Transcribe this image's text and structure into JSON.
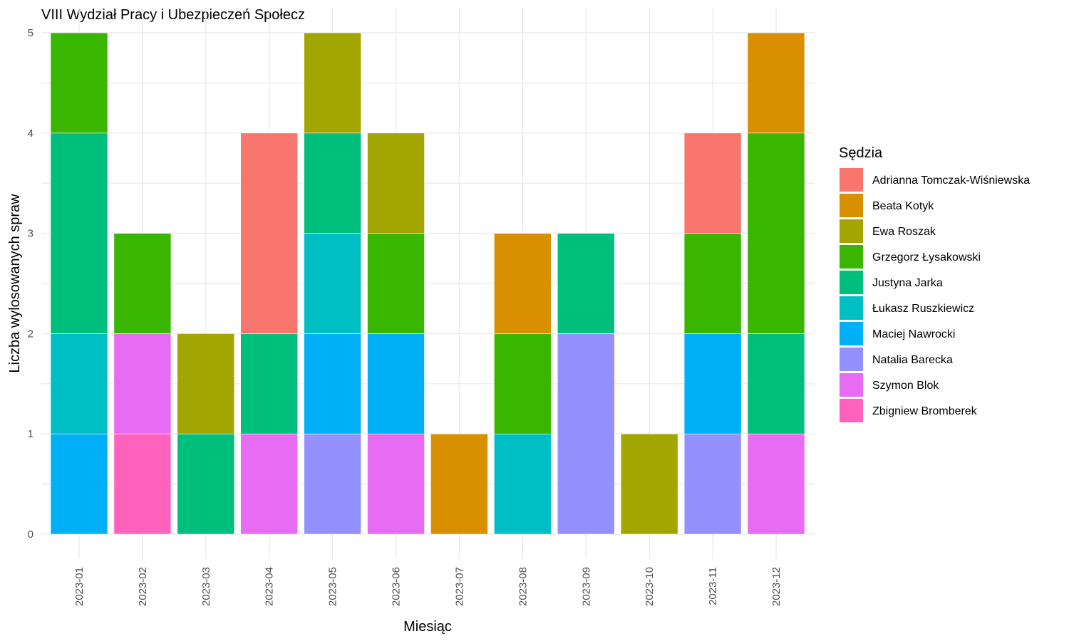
{
  "chart_data": {
    "type": "bar",
    "stacked": true,
    "title": "VIII Wydział Pracy i Ubezpieczeń Społecz",
    "xlabel": "Miesiąc",
    "ylabel": "Liczba wylosowanych spraw",
    "ylim": [
      0,
      5
    ],
    "yticks": [
      "0",
      "1",
      "2",
      "3",
      "4",
      "5"
    ],
    "grid": true,
    "legend_title": "Sędzia",
    "legend_position": "right",
    "categories": [
      "2023-01",
      "2023-02",
      "2023-03",
      "2023-04",
      "2023-05",
      "2023-06",
      "2023-07",
      "2023-08",
      "2023-09",
      "2023-10",
      "2023-11",
      "2023-12"
    ],
    "series": [
      {
        "name": "Adrianna Tomczak-Wiśniewska",
        "color": "#F8766D",
        "values": [
          0,
          0,
          0,
          2,
          0,
          0,
          0,
          0,
          0,
          0,
          1,
          0
        ]
      },
      {
        "name": "Beata Kotyk",
        "color": "#D89000",
        "values": [
          0,
          0,
          0,
          0,
          0,
          0,
          1,
          1,
          0,
          0,
          0,
          1
        ]
      },
      {
        "name": "Ewa Roszak",
        "color": "#A3A500",
        "values": [
          0,
          0,
          1,
          0,
          1,
          1,
          0,
          0,
          0,
          1,
          0,
          0
        ]
      },
      {
        "name": "Grzegorz Łysakowski",
        "color": "#39B600",
        "values": [
          1,
          1,
          0,
          0,
          0,
          1,
          0,
          1,
          0,
          0,
          1,
          2
        ]
      },
      {
        "name": "Justyna Jarka",
        "color": "#00BF7D",
        "values": [
          2,
          0,
          1,
          1,
          1,
          0,
          0,
          0,
          1,
          0,
          0,
          1
        ]
      },
      {
        "name": "Łukasz Ruszkiewicz",
        "color": "#00BFC4",
        "values": [
          1,
          0,
          0,
          0,
          1,
          0,
          0,
          1,
          0,
          0,
          0,
          0
        ]
      },
      {
        "name": "Maciej Nawrocki",
        "color": "#00B0F6",
        "values": [
          1,
          0,
          0,
          0,
          1,
          1,
          0,
          0,
          0,
          0,
          1,
          0
        ]
      },
      {
        "name": "Natalia Barecka",
        "color": "#9590FF",
        "values": [
          0,
          0,
          0,
          0,
          1,
          0,
          0,
          0,
          2,
          0,
          1,
          0
        ]
      },
      {
        "name": "Szymon Blok",
        "color": "#E76BF3",
        "values": [
          0,
          1,
          0,
          1,
          0,
          1,
          0,
          0,
          0,
          0,
          0,
          1
        ]
      },
      {
        "name": "Zbigniew Bromberek",
        "color": "#FF62BC",
        "values": [
          0,
          1,
          0,
          0,
          0,
          0,
          0,
          0,
          0,
          0,
          0,
          0
        ]
      }
    ]
  }
}
